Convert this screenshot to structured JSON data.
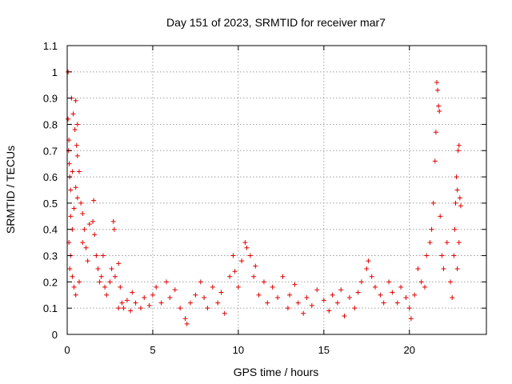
{
  "chart_data": {
    "type": "scatter",
    "title": "Day 151 of 2023, SRMTID for receiver mar7",
    "xlabel": "GPS time / hours",
    "ylabel": "SRMTID / TECUs",
    "xlim": [
      0,
      24.5
    ],
    "ylim": [
      0,
      1.1
    ],
    "xticks": [
      0,
      5,
      10,
      15,
      20
    ],
    "xtick_labels": [
      "0",
      "5",
      "10",
      "15",
      "20"
    ],
    "yticks": [
      0,
      0.1,
      0.2,
      0.3,
      0.4,
      0.5,
      0.6,
      0.7,
      0.8,
      0.9,
      1,
      1.1
    ],
    "ytick_labels": [
      "0",
      "0.1",
      "0.2",
      "0.3",
      "0.4",
      "0.5",
      "0.6",
      "0.7",
      "0.8",
      "0.9",
      "1",
      "1.1"
    ],
    "grid": true,
    "marker": "plus",
    "series": [
      {
        "name": "SRMTID",
        "color": "#e00000",
        "points": [
          [
            0.05,
            1.0
          ],
          [
            0.05,
            0.82
          ],
          [
            0.1,
            0.74
          ],
          [
            0.08,
            0.7
          ],
          [
            0.12,
            0.65
          ],
          [
            0.15,
            0.6
          ],
          [
            0.2,
            0.55
          ],
          [
            0.25,
            0.9
          ],
          [
            0.5,
            0.89
          ],
          [
            0.35,
            0.84
          ],
          [
            0.6,
            0.8
          ],
          [
            0.45,
            0.78
          ],
          [
            0.55,
            0.72
          ],
          [
            0.6,
            0.68
          ],
          [
            0.3,
            0.62
          ],
          [
            0.7,
            0.62
          ],
          [
            0.5,
            0.56
          ],
          [
            0.6,
            0.52
          ],
          [
            0.8,
            0.5
          ],
          [
            0.9,
            0.46
          ],
          [
            0.4,
            0.48
          ],
          [
            0.2,
            0.45
          ],
          [
            0.3,
            0.4
          ],
          [
            0.1,
            0.35
          ],
          [
            0.2,
            0.3
          ],
          [
            0.15,
            0.25
          ],
          [
            0.3,
            0.22
          ],
          [
            0.4,
            0.18
          ],
          [
            0.5,
            0.15
          ],
          [
            0.7,
            0.2
          ],
          [
            0.9,
            0.35
          ],
          [
            1.0,
            0.4
          ],
          [
            1.1,
            0.33
          ],
          [
            1.2,
            0.28
          ],
          [
            1.3,
            0.42
          ],
          [
            1.5,
            0.43
          ],
          [
            1.6,
            0.38
          ],
          [
            1.7,
            0.3
          ],
          [
            1.55,
            0.51
          ],
          [
            1.8,
            0.25
          ],
          [
            1.9,
            0.2
          ],
          [
            2.0,
            0.22
          ],
          [
            2.1,
            0.3
          ],
          [
            2.2,
            0.18
          ],
          [
            2.3,
            0.15
          ],
          [
            2.5,
            0.2
          ],
          [
            2.6,
            0.25
          ],
          [
            2.7,
            0.43
          ],
          [
            2.75,
            0.4
          ],
          [
            2.8,
            0.22
          ],
          [
            3.0,
            0.27
          ],
          [
            3.1,
            0.18
          ],
          [
            3.2,
            0.12
          ],
          [
            3.3,
            0.1
          ],
          [
            3.0,
            0.1
          ],
          [
            3.5,
            0.13
          ],
          [
            3.7,
            0.09
          ],
          [
            3.8,
            0.16
          ],
          [
            4.0,
            0.12
          ],
          [
            4.3,
            0.1
          ],
          [
            4.5,
            0.14
          ],
          [
            4.8,
            0.11
          ],
          [
            5.0,
            0.15
          ],
          [
            5.2,
            0.18
          ],
          [
            5.5,
            0.12
          ],
          [
            5.8,
            0.2
          ],
          [
            6.0,
            0.14
          ],
          [
            6.3,
            0.17
          ],
          [
            6.6,
            0.1
          ],
          [
            6.9,
            0.06
          ],
          [
            7.0,
            0.04
          ],
          [
            7.2,
            0.12
          ],
          [
            7.5,
            0.15
          ],
          [
            7.8,
            0.2
          ],
          [
            8.0,
            0.14
          ],
          [
            8.2,
            0.1
          ],
          [
            8.5,
            0.18
          ],
          [
            8.8,
            0.12
          ],
          [
            9.0,
            0.16
          ],
          [
            9.2,
            0.08
          ],
          [
            9.5,
            0.22
          ],
          [
            9.7,
            0.3
          ],
          [
            9.8,
            0.24
          ],
          [
            10.0,
            0.18
          ],
          [
            10.2,
            0.28
          ],
          [
            10.4,
            0.35
          ],
          [
            10.5,
            0.33
          ],
          [
            10.7,
            0.3
          ],
          [
            10.9,
            0.22
          ],
          [
            11.0,
            0.26
          ],
          [
            11.2,
            0.15
          ],
          [
            11.5,
            0.2
          ],
          [
            11.7,
            0.12
          ],
          [
            12.0,
            0.18
          ],
          [
            12.3,
            0.14
          ],
          [
            12.6,
            0.22
          ],
          [
            12.9,
            0.1
          ],
          [
            13.0,
            0.15
          ],
          [
            13.3,
            0.19
          ],
          [
            13.5,
            0.12
          ],
          [
            13.8,
            0.08
          ],
          [
            14.0,
            0.14
          ],
          [
            14.3,
            0.11
          ],
          [
            14.6,
            0.17
          ],
          [
            15.0,
            0.13
          ],
          [
            15.3,
            0.09
          ],
          [
            15.5,
            0.15
          ],
          [
            15.8,
            0.12
          ],
          [
            16.0,
            0.17
          ],
          [
            16.2,
            0.07
          ],
          [
            16.5,
            0.14
          ],
          [
            16.8,
            0.1
          ],
          [
            17.0,
            0.16
          ],
          [
            17.2,
            0.2
          ],
          [
            17.5,
            0.25
          ],
          [
            17.6,
            0.28
          ],
          [
            17.8,
            0.22
          ],
          [
            18.0,
            0.18
          ],
          [
            18.3,
            0.15
          ],
          [
            18.5,
            0.12
          ],
          [
            18.8,
            0.2
          ],
          [
            19.0,
            0.16
          ],
          [
            19.3,
            0.12
          ],
          [
            19.5,
            0.18
          ],
          [
            19.8,
            0.14
          ],
          [
            20.0,
            0.1
          ],
          [
            20.1,
            0.06
          ],
          [
            20.3,
            0.15
          ],
          [
            20.5,
            0.25
          ],
          [
            20.7,
            0.2
          ],
          [
            20.9,
            0.18
          ],
          [
            21.0,
            0.3
          ],
          [
            21.2,
            0.35
          ],
          [
            21.3,
            0.4
          ],
          [
            21.4,
            0.5
          ],
          [
            21.5,
            0.66
          ],
          [
            21.55,
            0.77
          ],
          [
            21.6,
            0.96
          ],
          [
            21.65,
            0.93
          ],
          [
            21.7,
            0.87
          ],
          [
            21.75,
            0.85
          ],
          [
            21.8,
            0.45
          ],
          [
            21.9,
            0.3
          ],
          [
            22.0,
            0.25
          ],
          [
            22.2,
            0.35
          ],
          [
            22.4,
            0.2
          ],
          [
            22.5,
            0.14
          ],
          [
            22.6,
            0.3
          ],
          [
            22.65,
            0.4
          ],
          [
            22.7,
            0.5
          ],
          [
            22.75,
            0.6
          ],
          [
            22.8,
            0.55
          ],
          [
            22.85,
            0.7
          ],
          [
            22.9,
            0.72
          ],
          [
            22.95,
            0.52
          ],
          [
            23.0,
            0.49
          ],
          [
            22.9,
            0.35
          ],
          [
            22.8,
            0.25
          ]
        ]
      }
    ]
  }
}
